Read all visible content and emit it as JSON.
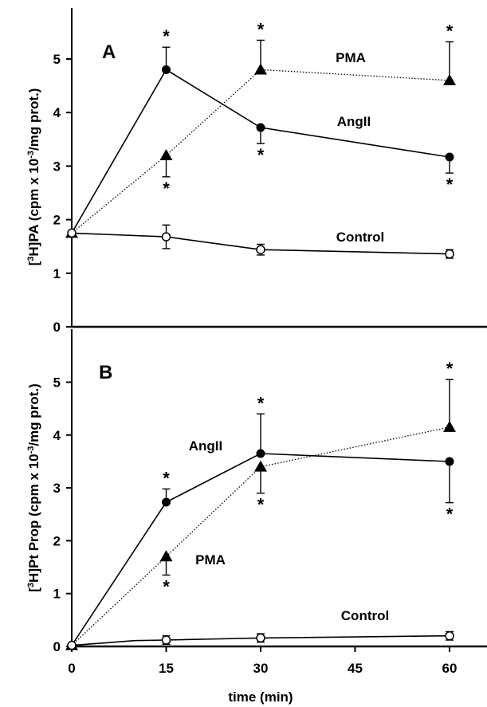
{
  "chart_data": [
    {
      "panel": "A",
      "type": "line",
      "ylabel": "[3H]PA (cpm x 10-3/mg prot.)",
      "ylabel_parts": {
        "pre": "[",
        "sup1": "3",
        "mid": "H]PA (cpm x 10",
        "sup2": "-3",
        "post": "/mg prot.)"
      },
      "ylim": [
        0,
        6
      ],
      "yticks": [
        0,
        1,
        2,
        3,
        4,
        5
      ],
      "x": [
        0,
        15,
        30,
        60
      ],
      "series": [
        {
          "name": "PMA",
          "marker": "triangle",
          "line": "dotted",
          "values": [
            1.75,
            3.2,
            4.8,
            4.6
          ],
          "err": [
            0,
            0.4,
            0.55,
            0.72
          ],
          "sig": [
            false,
            "below",
            "above",
            "above"
          ]
        },
        {
          "name": "AngII",
          "marker": "filled-circle",
          "line": "solid",
          "values": [
            1.75,
            4.8,
            3.72,
            3.17
          ],
          "err": [
            0,
            0.42,
            0.3,
            0.3
          ],
          "sig": [
            false,
            "above",
            "below",
            "below"
          ]
        },
        {
          "name": "Control",
          "marker": "open-circle",
          "line": "solid",
          "values": [
            1.75,
            1.68,
            1.44,
            1.36
          ],
          "err": [
            0,
            0.22,
            0.1,
            0.08
          ],
          "sig": [
            false,
            false,
            false,
            false
          ]
        }
      ]
    },
    {
      "panel": "B",
      "type": "line",
      "ylabel": "[3H]Pt Prop (cpm x 10-3/mg prot.)",
      "ylabel_parts": {
        "pre": "[",
        "sup1": "3",
        "mid": "H]Pt Prop (cpm x 10",
        "sup2": "-3",
        "post": "/mg prot.)"
      },
      "xlabel": "time (min)",
      "xlim": [
        0,
        65
      ],
      "xticks": [
        0,
        15,
        30,
        45,
        60
      ],
      "ylim": [
        0,
        6
      ],
      "yticks": [
        0,
        1,
        2,
        3,
        4,
        5
      ],
      "x": [
        0,
        15,
        30,
        60
      ],
      "series": [
        {
          "name": "AngII",
          "marker": "filled-circle",
          "line": "solid",
          "values": [
            0.02,
            2.73,
            3.65,
            3.5
          ],
          "err": [
            0,
            0.25,
            0.75,
            0.78
          ],
          "sig": [
            false,
            "above",
            "above",
            "below"
          ]
        },
        {
          "name": "PMA",
          "marker": "triangle",
          "line": "dotted",
          "values": [
            0.02,
            1.7,
            3.4,
            4.15
          ],
          "err": [
            0,
            0.35,
            0.5,
            0.9
          ],
          "sig": [
            false,
            "below",
            "below",
            "above"
          ]
        },
        {
          "name": "Control",
          "marker": "open-circle",
          "line": "solid",
          "values": [
            0.02,
            0.12,
            0.16,
            0.2
          ],
          "err": [
            0,
            0.08,
            0.08,
            0.08
          ],
          "sig": [
            false,
            false,
            false,
            false
          ],
          "extra_vertices": [
            [
              10,
              0.11
            ]
          ]
        }
      ]
    }
  ]
}
